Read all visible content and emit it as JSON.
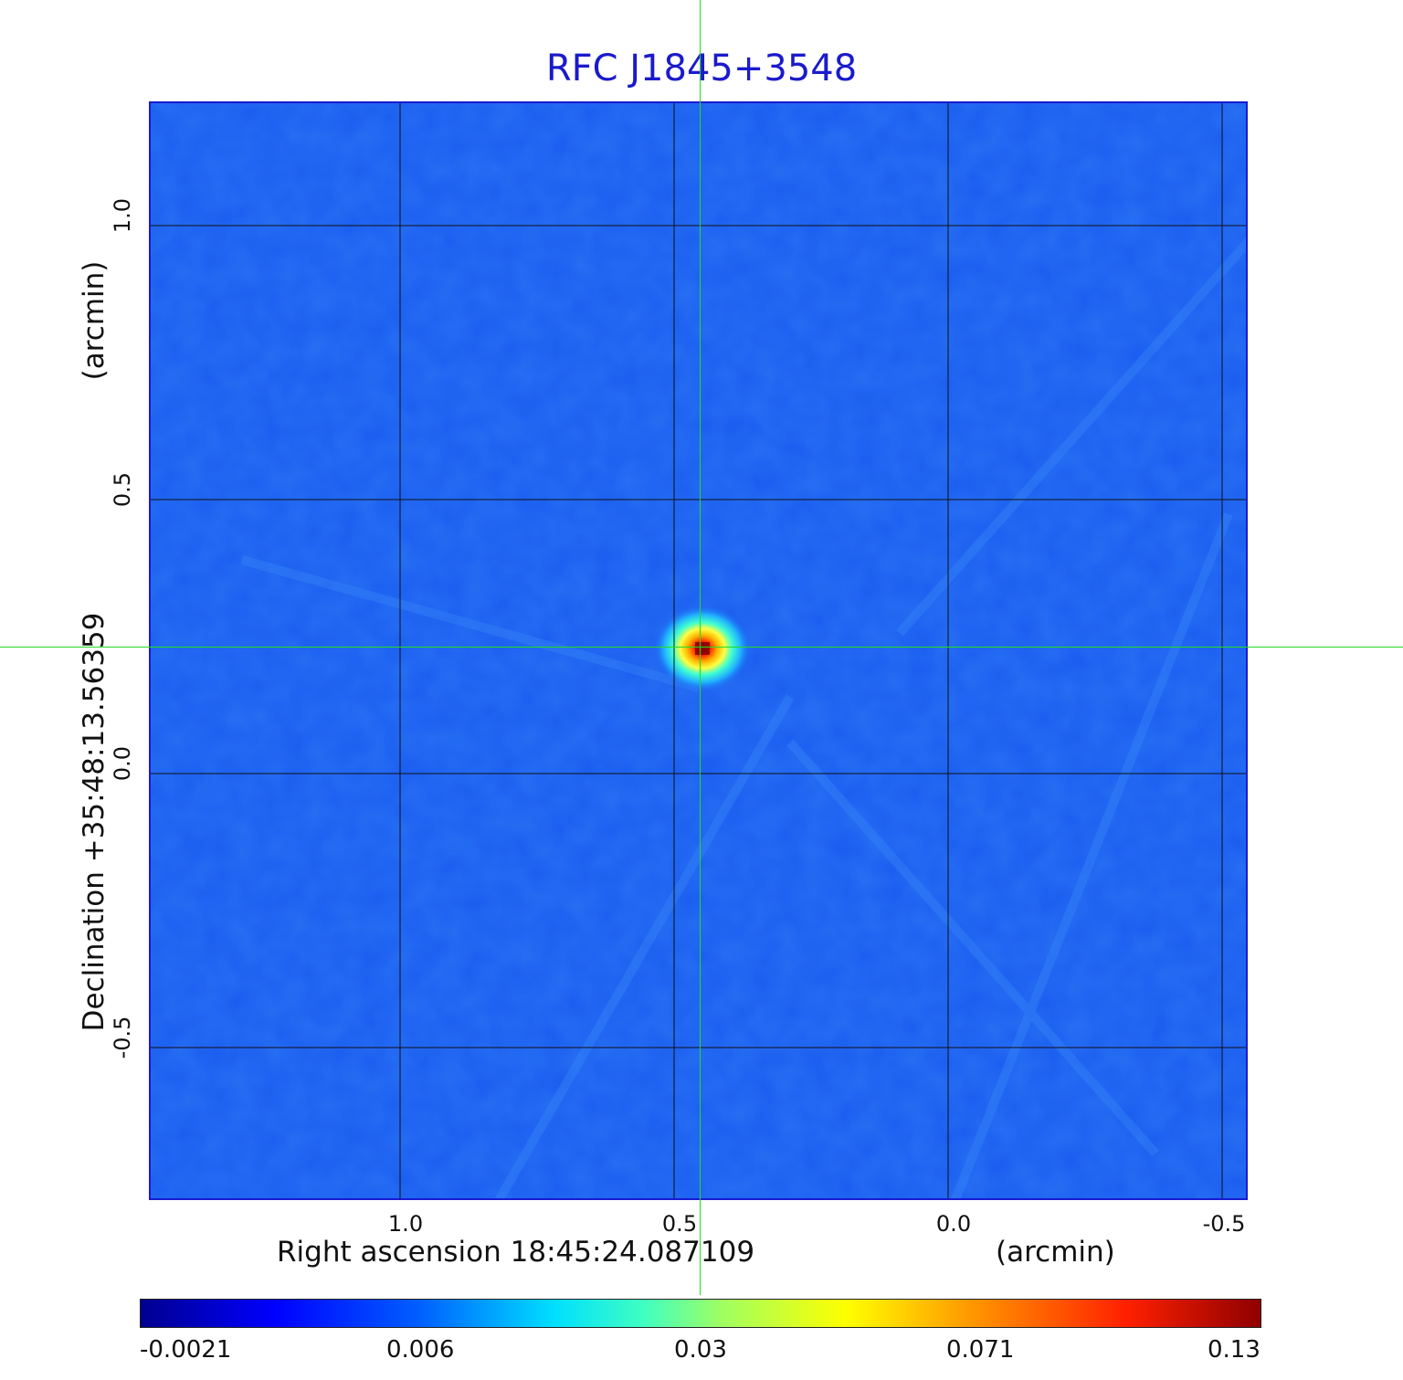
{
  "title": "RFC J1845+3548",
  "x_axis": {
    "label": "Right ascension  18:45:24.087109",
    "unit": "(arcmin)",
    "ticks": [
      "1.0",
      "0.5",
      "0.0",
      "-0.5"
    ]
  },
  "y_axis": {
    "label": "Declination  +35:48:13.56359",
    "unit": "(arcmin)",
    "ticks": [
      "1.0",
      "0.5",
      "0.0",
      "-0.5"
    ]
  },
  "colorbar": {
    "ticks": [
      "-0.0021",
      "0.006",
      "0.03",
      "0.071",
      "0.13"
    ],
    "colormap": "jet"
  },
  "colors": {
    "background_field": "#1a5cf0",
    "crosshair": "#22dd22",
    "grid": "#111111",
    "title": "#1a1acc"
  }
}
